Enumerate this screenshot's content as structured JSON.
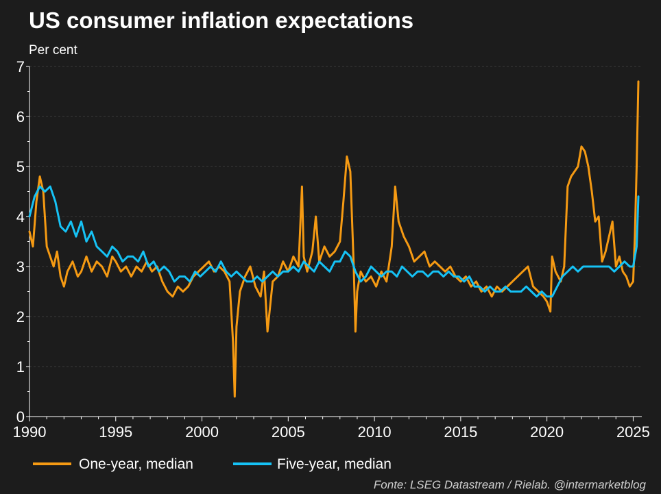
{
  "chart_data": {
    "type": "line",
    "title": "US consumer inflation expectations",
    "subtitle": "Per cent",
    "source": "Fonte: LSEG Datastream / Rielab. @intermarketblog",
    "xlim": [
      1990,
      2025.5
    ],
    "ylim": [
      0,
      7
    ],
    "x_ticks": [
      1990,
      1995,
      2000,
      2005,
      2010,
      2015,
      2020,
      2025
    ],
    "y_ticks": [
      0,
      1,
      2,
      3,
      4,
      5,
      6,
      7
    ],
    "grid": true,
    "legend_position": "bottom-left",
    "series": [
      {
        "name": "One-year, median",
        "color": "#f59a13",
        "x": [
          1990.0,
          1990.2,
          1990.4,
          1990.6,
          1990.8,
          1991.0,
          1991.2,
          1991.4,
          1991.6,
          1991.8,
          1992.0,
          1992.2,
          1992.5,
          1992.8,
          1993.0,
          1993.3,
          1993.6,
          1993.9,
          1994.2,
          1994.5,
          1994.8,
          1995.0,
          1995.3,
          1995.6,
          1995.9,
          1996.2,
          1996.5,
          1996.8,
          1997.1,
          1997.4,
          1997.7,
          1998.0,
          1998.3,
          1998.6,
          1998.9,
          1999.2,
          1999.5,
          1999.8,
          2000.1,
          2000.4,
          2000.7,
          2001.0,
          2001.3,
          2001.6,
          2001.8,
          2001.9,
          2002.0,
          2002.2,
          2002.5,
          2002.8,
          2003.1,
          2003.4,
          2003.6,
          2003.8,
          2004.1,
          2004.4,
          2004.7,
          2005.0,
          2005.3,
          2005.6,
          2005.8,
          2005.9,
          2006.1,
          2006.4,
          2006.6,
          2006.8,
          2007.1,
          2007.4,
          2007.7,
          2008.0,
          2008.2,
          2008.4,
          2008.6,
          2008.8,
          2008.9,
          2009.0,
          2009.2,
          2009.5,
          2009.8,
          2010.1,
          2010.4,
          2010.7,
          2011.0,
          2011.2,
          2011.4,
          2011.7,
          2012.0,
          2012.3,
          2012.6,
          2012.9,
          2013.2,
          2013.5,
          2013.8,
          2014.1,
          2014.4,
          2014.7,
          2015.0,
          2015.3,
          2015.6,
          2015.9,
          2016.2,
          2016.5,
          2016.8,
          2017.1,
          2017.4,
          2017.7,
          2018.0,
          2018.3,
          2018.6,
          2018.9,
          2019.2,
          2019.5,
          2019.8,
          2020.0,
          2020.2,
          2020.3,
          2020.5,
          2020.8,
          2021.0,
          2021.2,
          2021.4,
          2021.6,
          2021.8,
          2022.0,
          2022.2,
          2022.4,
          2022.6,
          2022.8,
          2023.0,
          2023.2,
          2023.4,
          2023.6,
          2023.8,
          2024.0,
          2024.2,
          2024.4,
          2024.6,
          2024.8,
          2025.0,
          2025.1,
          2025.2,
          2025.3
        ],
        "y": [
          3.7,
          3.4,
          4.3,
          4.8,
          4.5,
          3.4,
          3.2,
          3.0,
          3.3,
          2.8,
          2.6,
          2.9,
          3.1,
          2.8,
          2.9,
          3.2,
          2.9,
          3.1,
          3.0,
          2.8,
          3.2,
          3.1,
          2.9,
          3.0,
          2.8,
          3.0,
          2.9,
          3.1,
          2.9,
          3.0,
          2.7,
          2.5,
          2.4,
          2.6,
          2.5,
          2.6,
          2.8,
          2.9,
          3.0,
          3.1,
          2.9,
          3.0,
          2.9,
          2.7,
          1.5,
          0.4,
          1.8,
          2.5,
          2.8,
          3.0,
          2.6,
          2.4,
          2.9,
          1.7,
          2.7,
          2.8,
          3.1,
          2.9,
          3.2,
          3.0,
          4.6,
          3.2,
          2.9,
          3.3,
          4.0,
          3.1,
          3.4,
          3.2,
          3.3,
          3.5,
          4.3,
          5.2,
          4.9,
          3.0,
          1.7,
          2.5,
          2.9,
          2.7,
          2.8,
          2.6,
          2.9,
          2.7,
          3.4,
          4.6,
          3.9,
          3.6,
          3.4,
          3.1,
          3.2,
          3.3,
          3.0,
          3.1,
          3.0,
          2.9,
          3.0,
          2.8,
          2.7,
          2.8,
          2.6,
          2.7,
          2.5,
          2.6,
          2.4,
          2.6,
          2.5,
          2.6,
          2.7,
          2.8,
          2.9,
          3.0,
          2.6,
          2.5,
          2.4,
          2.3,
          2.1,
          3.2,
          2.9,
          2.7,
          3.0,
          4.6,
          4.8,
          4.9,
          5.0,
          5.4,
          5.3,
          5.0,
          4.5,
          3.9,
          4.0,
          3.1,
          3.3,
          3.6,
          3.9,
          3.0,
          3.2,
          2.9,
          2.8,
          2.6,
          2.7,
          3.6,
          5.0,
          6.7
        ]
      },
      {
        "name": "Five-year, median",
        "color": "#16c2f5",
        "x": [
          1990.0,
          1990.3,
          1990.6,
          1990.9,
          1991.2,
          1991.5,
          1991.8,
          1992.1,
          1992.4,
          1992.7,
          1993.0,
          1993.3,
          1993.6,
          1993.9,
          1994.2,
          1994.5,
          1994.8,
          1995.1,
          1995.4,
          1995.7,
          1996.0,
          1996.3,
          1996.6,
          1996.9,
          1997.2,
          1997.5,
          1997.8,
          1998.1,
          1998.4,
          1998.7,
          1999.0,
          1999.3,
          1999.6,
          1999.9,
          2000.2,
          2000.5,
          2000.8,
          2001.1,
          2001.4,
          2001.7,
          2002.0,
          2002.3,
          2002.6,
          2002.9,
          2003.2,
          2003.5,
          2003.8,
          2004.1,
          2004.4,
          2004.7,
          2005.0,
          2005.3,
          2005.6,
          2005.9,
          2006.2,
          2006.5,
          2006.8,
          2007.1,
          2007.4,
          2007.7,
          2008.0,
          2008.3,
          2008.6,
          2008.9,
          2009.2,
          2009.5,
          2009.8,
          2010.1,
          2010.4,
          2010.7,
          2011.0,
          2011.3,
          2011.6,
          2011.9,
          2012.2,
          2012.5,
          2012.8,
          2013.1,
          2013.4,
          2013.7,
          2014.0,
          2014.3,
          2014.6,
          2014.9,
          2015.2,
          2015.5,
          2015.8,
          2016.1,
          2016.4,
          2016.7,
          2017.0,
          2017.3,
          2017.6,
          2017.9,
          2018.2,
          2018.5,
          2018.8,
          2019.1,
          2019.4,
          2019.7,
          2020.0,
          2020.3,
          2020.6,
          2020.9,
          2021.2,
          2021.5,
          2021.8,
          2022.1,
          2022.4,
          2022.7,
          2023.0,
          2023.3,
          2023.6,
          2023.9,
          2024.2,
          2024.5,
          2024.8,
          2025.0,
          2025.2,
          2025.3
        ],
        "y": [
          4.0,
          4.4,
          4.6,
          4.5,
          4.6,
          4.3,
          3.8,
          3.7,
          3.9,
          3.6,
          3.9,
          3.5,
          3.7,
          3.4,
          3.3,
          3.2,
          3.4,
          3.3,
          3.1,
          3.2,
          3.2,
          3.1,
          3.3,
          3.0,
          3.1,
          2.9,
          3.0,
          2.9,
          2.7,
          2.8,
          2.8,
          2.7,
          2.9,
          2.8,
          2.9,
          3.0,
          2.9,
          3.1,
          2.9,
          2.8,
          2.9,
          2.8,
          2.7,
          2.7,
          2.8,
          2.7,
          2.8,
          2.9,
          2.8,
          2.9,
          2.9,
          3.0,
          2.9,
          3.1,
          3.0,
          2.9,
          3.1,
          3.0,
          2.9,
          3.1,
          3.1,
          3.3,
          3.2,
          2.9,
          2.7,
          2.8,
          3.0,
          2.9,
          2.8,
          2.9,
          2.9,
          2.8,
          3.0,
          2.9,
          2.8,
          2.9,
          2.9,
          2.8,
          2.9,
          2.9,
          2.8,
          2.9,
          2.8,
          2.8,
          2.7,
          2.8,
          2.6,
          2.6,
          2.5,
          2.6,
          2.5,
          2.5,
          2.6,
          2.5,
          2.5,
          2.5,
          2.6,
          2.5,
          2.4,
          2.5,
          2.4,
          2.4,
          2.6,
          2.8,
          2.9,
          3.0,
          2.9,
          3.0,
          3.0,
          3.0,
          3.0,
          3.0,
          3.0,
          2.9,
          3.0,
          3.1,
          3.0,
          3.0,
          3.4,
          4.4
        ]
      }
    ]
  }
}
